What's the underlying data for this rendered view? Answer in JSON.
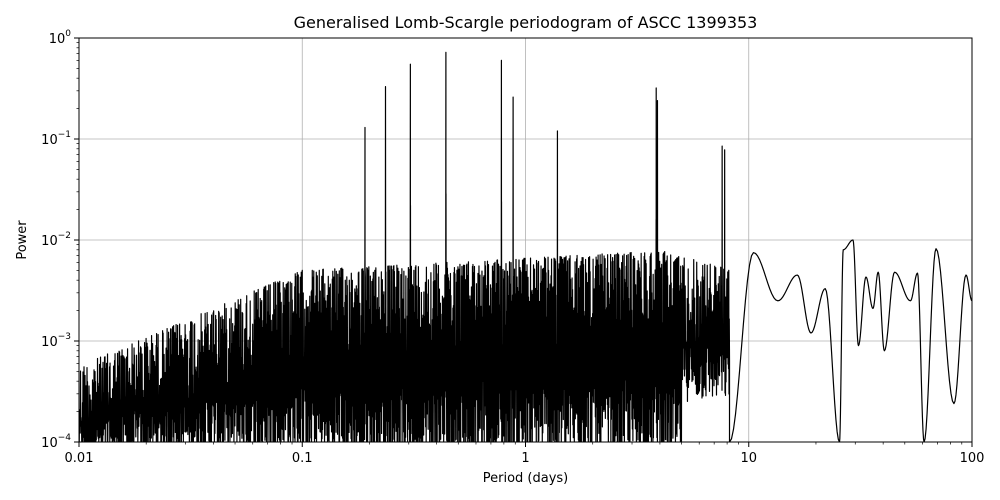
{
  "chart_data": {
    "type": "line",
    "title": "Generalised Lomb-Scargle periodogram of ASCC 1399353",
    "xlabel": "Period (days)",
    "ylabel": "Power",
    "xscale": "log",
    "yscale": "log",
    "xlim": [
      0.01,
      100
    ],
    "ylim": [
      0.0001,
      1
    ],
    "grid": true,
    "line_color": "#000000",
    "x_ticks": [
      {
        "value": 0.01,
        "label": "0.01"
      },
      {
        "value": 0.1,
        "label": "0.1"
      },
      {
        "value": 1,
        "label": "1"
      },
      {
        "value": 10,
        "label": "10"
      },
      {
        "value": 100,
        "label": "100"
      }
    ],
    "y_ticks": [
      {
        "value": 0.0001,
        "base": "10",
        "exp": "−4"
      },
      {
        "value": 0.001,
        "base": "10",
        "exp": "−3"
      },
      {
        "value": 0.01,
        "base": "10",
        "exp": "−2"
      },
      {
        "value": 0.1,
        "base": "10",
        "exp": "−1"
      },
      {
        "value": 1,
        "base": "10",
        "exp": "0"
      }
    ],
    "peaks": [
      {
        "x": 0.191,
        "y": 0.13
      },
      {
        "x": 0.236,
        "y": 0.33
      },
      {
        "x": 0.305,
        "y": 0.55
      },
      {
        "x": 0.44,
        "y": 0.72
      },
      {
        "x": 0.78,
        "y": 0.6
      },
      {
        "x": 0.88,
        "y": 0.26
      },
      {
        "x": 1.39,
        "y": 0.12
      },
      {
        "x": 3.85,
        "y": 0.32
      },
      {
        "x": 3.9,
        "y": 0.24
      },
      {
        "x": 7.6,
        "y": 0.085
      },
      {
        "x": 7.8,
        "y": 0.078
      }
    ],
    "smooth_tail": [
      {
        "x": 8.2,
        "y": 0.0001
      },
      {
        "x": 10.5,
        "y": 0.0075
      },
      {
        "x": 13.5,
        "y": 0.0025
      },
      {
        "x": 16.5,
        "y": 0.0045
      },
      {
        "x": 19,
        "y": 0.0012
      },
      {
        "x": 22,
        "y": 0.0033
      },
      {
        "x": 25.5,
        "y": 0.0001
      },
      {
        "x": 26.5,
        "y": 0.008
      },
      {
        "x": 29.3,
        "y": 0.01
      },
      {
        "x": 31,
        "y": 0.0009
      },
      {
        "x": 33.5,
        "y": 0.0043
      },
      {
        "x": 36,
        "y": 0.0021
      },
      {
        "x": 38,
        "y": 0.0048
      },
      {
        "x": 40.5,
        "y": 0.0008
      },
      {
        "x": 45,
        "y": 0.0048
      },
      {
        "x": 53,
        "y": 0.0025
      },
      {
        "x": 57,
        "y": 0.0047
      },
      {
        "x": 61,
        "y": 0.0001
      },
      {
        "x": 69,
        "y": 0.0082
      },
      {
        "x": 83,
        "y": 0.00024
      },
      {
        "x": 94,
        "y": 0.0045
      },
      {
        "x": 100,
        "y": 0.0025
      }
    ]
  }
}
